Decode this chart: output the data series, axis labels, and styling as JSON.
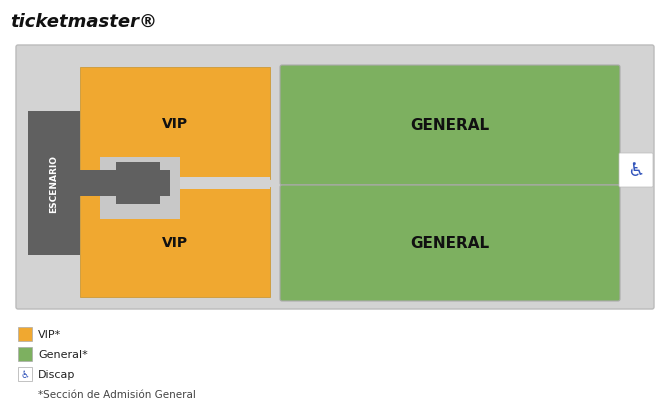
{
  "bg_color": "#ffffff",
  "map_bg": "#d3d3d3",
  "vip_color": "#F0A830",
  "general_color": "#7DB060",
  "stage_color": "#606060",
  "connector_color": "#606060",
  "connector_bg": "#c8c8c8",
  "text_color": "#111111",
  "title": "ticketmaster®",
  "stage_label": "ESCENARIO",
  "vip_label": "VIP",
  "general_label": "GENERAL",
  "legend_items": [
    {
      "label": "VIP*",
      "color": "#F0A830"
    },
    {
      "label": "General*",
      "color": "#7DB060"
    },
    {
      "label": "Discap",
      "color": "#3355BB"
    }
  ],
  "footnote": "*Sección de Admisión General"
}
